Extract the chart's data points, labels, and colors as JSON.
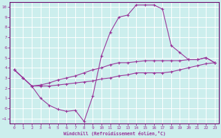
{
  "xlabel": "Windchill (Refroidissement éolien,°C)",
  "bg_color": "#cceeed",
  "line_color": "#993399",
  "spine_color": "#660066",
  "xlim": [
    -0.5,
    23.5
  ],
  "ylim": [
    -1.5,
    10.5
  ],
  "xticks": [
    0,
    1,
    2,
    3,
    4,
    5,
    6,
    7,
    8,
    9,
    10,
    11,
    12,
    13,
    14,
    15,
    16,
    17,
    18,
    19,
    20,
    21,
    22,
    23
  ],
  "yticks": [
    -1,
    0,
    1,
    2,
    3,
    4,
    5,
    6,
    7,
    8,
    9,
    10
  ],
  "curve1_x": [
    0,
    1,
    2,
    3,
    4,
    5,
    6,
    7,
    8,
    9,
    10,
    11,
    12,
    13,
    14,
    15,
    16,
    17,
    18,
    19,
    20,
    21,
    22,
    23
  ],
  "curve1_y": [
    3.8,
    3.0,
    2.2,
    2.3,
    2.5,
    2.8,
    3.0,
    3.2,
    3.5,
    3.8,
    4.0,
    4.3,
    4.5,
    4.5,
    4.6,
    4.7,
    4.7,
    4.7,
    4.7,
    4.7,
    4.8,
    4.8,
    5.0,
    4.5
  ],
  "curve2_x": [
    0,
    1,
    2,
    3,
    4,
    5,
    6,
    7,
    8,
    9,
    10,
    11,
    12,
    13,
    14,
    15,
    16,
    17,
    18,
    19,
    20,
    21,
    22,
    23
  ],
  "curve2_y": [
    3.8,
    3.0,
    2.2,
    2.2,
    2.2,
    2.3,
    2.4,
    2.5,
    2.6,
    2.7,
    2.9,
    3.0,
    3.2,
    3.3,
    3.5,
    3.5,
    3.5,
    3.5,
    3.6,
    3.8,
    4.0,
    4.2,
    4.4,
    4.5
  ],
  "curve3_x": [
    0,
    1,
    2,
    3,
    4,
    5,
    6,
    7,
    8,
    9,
    10,
    11,
    12,
    13,
    14,
    15,
    16,
    17,
    18,
    19,
    20,
    21,
    22,
    23
  ],
  "curve3_y": [
    3.8,
    3.0,
    2.2,
    1.0,
    0.3,
    -0.1,
    -0.3,
    -0.2,
    -1.3,
    1.2,
    5.2,
    7.5,
    9.0,
    9.2,
    10.2,
    10.2,
    10.2,
    9.8,
    6.2,
    5.5,
    4.8,
    4.8,
    5.0,
    4.5
  ]
}
